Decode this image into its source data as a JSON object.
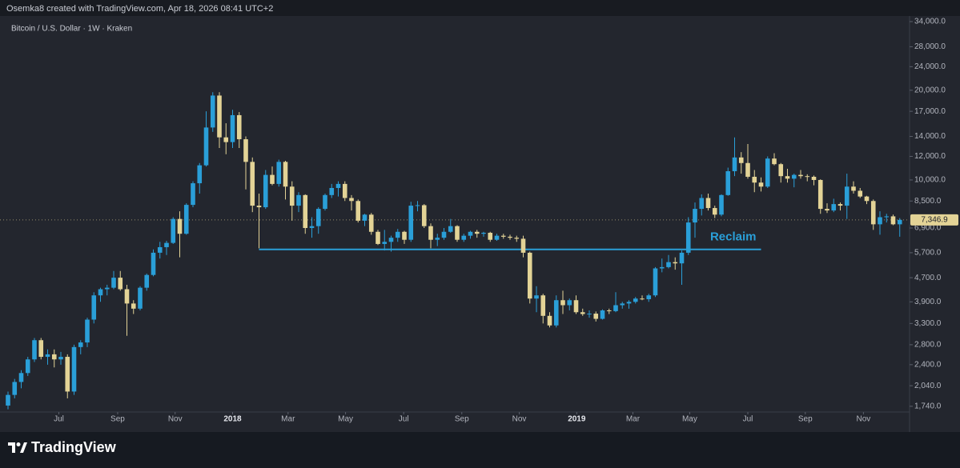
{
  "header": {
    "credit": "Osemka8 created with TradingView.com, Apr 18, 2026 08:41 UTC+2"
  },
  "footer": {
    "brand": "TradingView"
  },
  "chart_data": {
    "type": "candlestick",
    "title": "Bitcoin / U.S. Dollar · 1W · Kraken",
    "log_scale": true,
    "up_color": "#2a9fd8",
    "down_color": "#e3d396",
    "ylim": [
      1665,
      35500
    ],
    "yticks": [
      {
        "value": 1740,
        "label": "1,740.0"
      },
      {
        "value": 2040,
        "label": "2,040.0"
      },
      {
        "value": 2400,
        "label": "2,400.0"
      },
      {
        "value": 2800,
        "label": "2,800.0"
      },
      {
        "value": 3300,
        "label": "3,300.0"
      },
      {
        "value": 3900,
        "label": "3,900.0"
      },
      {
        "value": 4700,
        "label": "4,700.0"
      },
      {
        "value": 5700,
        "label": "5,700.0"
      },
      {
        "value": 6900,
        "label": "6,900.0"
      },
      {
        "value": 8500,
        "label": "8,500.0"
      },
      {
        "value": 10000,
        "label": "10,000.0"
      },
      {
        "value": 12000,
        "label": "12,000.0"
      },
      {
        "value": 14000,
        "label": "14,000.0"
      },
      {
        "value": 17000,
        "label": "17,000.0"
      },
      {
        "value": 20000,
        "label": "20,000.0"
      },
      {
        "value": 24000,
        "label": "24,000.0"
      },
      {
        "value": 28000,
        "label": "28,000.0"
      },
      {
        "value": 34000,
        "label": "34,000.0"
      }
    ],
    "xticks": [
      {
        "value": 7.7,
        "label": "Jul"
      },
      {
        "value": 16.6,
        "label": "Sep"
      },
      {
        "value": 25.3,
        "label": "Nov"
      },
      {
        "value": 34,
        "label": "2018"
      },
      {
        "value": 42.4,
        "label": "Mar"
      },
      {
        "value": 51.1,
        "label": "May"
      },
      {
        "value": 59.9,
        "label": "Jul"
      },
      {
        "value": 68.7,
        "label": "Sep"
      },
      {
        "value": 77.4,
        "label": "Nov"
      },
      {
        "value": 86.1,
        "label": "2019"
      },
      {
        "value": 94.6,
        "label": "Mar"
      },
      {
        "value": 103.2,
        "label": "May"
      },
      {
        "value": 112,
        "label": "Jul"
      },
      {
        "value": 120.7,
        "label": "Sep"
      },
      {
        "value": 129.5,
        "label": "Nov"
      }
    ],
    "last_price": {
      "value": 7346.9,
      "label": "7,346.9"
    },
    "annotations": [
      {
        "label": "Reclaim",
        "value": 5850,
        "x": [
          38,
          114
        ],
        "color": "#2a9fd8"
      }
    ],
    "values": [
      [
        1750,
        1950,
        1700,
        1900
      ],
      [
        1900,
        2150,
        1850,
        2100
      ],
      [
        2100,
        2300,
        2000,
        2250
      ],
      [
        2250,
        2550,
        2200,
        2500
      ],
      [
        2500,
        2950,
        2450,
        2900
      ],
      [
        2900,
        2950,
        2500,
        2550
      ],
      [
        2550,
        2700,
        2400,
        2600
      ],
      [
        2600,
        2700,
        2350,
        2500
      ],
      [
        2500,
        2650,
        2400,
        2550
      ],
      [
        2550,
        2600,
        1850,
        1950
      ],
      [
        1950,
        2800,
        1900,
        2750
      ],
      [
        2750,
        2900,
        2600,
        2850
      ],
      [
        2850,
        3450,
        2750,
        3400
      ],
      [
        3400,
        4200,
        3300,
        4100
      ],
      [
        4100,
        4350,
        3900,
        4300
      ],
      [
        4300,
        4450,
        4100,
        4350
      ],
      [
        4350,
        4950,
        4300,
        4700
      ],
      [
        4700,
        4950,
        4250,
        4300
      ],
      [
        4300,
        4450,
        3000,
        3850
      ],
      [
        3850,
        3950,
        3550,
        3700
      ],
      [
        3700,
        4400,
        3650,
        4350
      ],
      [
        4350,
        4850,
        4250,
        4800
      ],
      [
        4800,
        5850,
        4750,
        5700
      ],
      [
        5700,
        6200,
        5450,
        5950
      ],
      [
        5950,
        6250,
        5600,
        6150
      ],
      [
        6150,
        7500,
        6100,
        7400
      ],
      [
        7400,
        7850,
        5500,
        6600
      ],
      [
        6600,
        8350,
        6550,
        8250
      ],
      [
        8250,
        9900,
        8100,
        9750
      ],
      [
        9750,
        11400,
        9000,
        11200
      ],
      [
        11200,
        17000,
        11100,
        15000
      ],
      [
        15000,
        19700,
        14500,
        19200
      ],
      [
        19200,
        19700,
        12800,
        13900
      ],
      [
        13900,
        15500,
        12200,
        13400
      ],
      [
        13400,
        17200,
        12800,
        16500
      ],
      [
        16500,
        16900,
        12800,
        13700
      ],
      [
        13700,
        14000,
        9300,
        11500
      ],
      [
        11500,
        11900,
        7800,
        8200
      ],
      [
        8200,
        9000,
        5900,
        8100
      ],
      [
        8100,
        10800,
        8000,
        10400
      ],
      [
        10400,
        11100,
        9600,
        9700
      ],
      [
        9700,
        11700,
        9500,
        11500
      ],
      [
        11500,
        11600,
        8600,
        9500
      ],
      [
        9500,
        9900,
        7300,
        8200
      ],
      [
        8200,
        9100,
        7800,
        8900
      ],
      [
        8900,
        8950,
        6600,
        6900
      ],
      [
        6900,
        7500,
        6400,
        7000
      ],
      [
        7000,
        8100,
        6600,
        8000
      ],
      [
        8000,
        9000,
        7900,
        8900
      ],
      [
        8900,
        9700,
        8700,
        9400
      ],
      [
        9400,
        9900,
        8800,
        9700
      ],
      [
        9700,
        9900,
        8500,
        8700
      ],
      [
        8700,
        8900,
        7900,
        8500
      ],
      [
        8500,
        8600,
        7200,
        7300
      ],
      [
        7300,
        7700,
        7000,
        7650
      ],
      [
        7650,
        7750,
        6550,
        6700
      ],
      [
        6700,
        6800,
        6050,
        6100
      ],
      [
        6100,
        6800,
        5800,
        6200
      ],
      [
        6200,
        6500,
        5750,
        6400
      ],
      [
        6400,
        6850,
        6200,
        6700
      ],
      [
        6700,
        6750,
        6100,
        6300
      ],
      [
        6300,
        8450,
        6200,
        8200
      ],
      [
        8200,
        8500,
        7850,
        8230
      ],
      [
        8230,
        8300,
        6900,
        7000
      ],
      [
        7000,
        7150,
        5900,
        6300
      ],
      [
        6300,
        6600,
        6000,
        6400
      ],
      [
        6400,
        6900,
        6300,
        6700
      ],
      [
        6700,
        7400,
        6650,
        7000
      ],
      [
        7000,
        7050,
        6200,
        6300
      ],
      [
        6300,
        6600,
        6200,
        6500
      ],
      [
        6500,
        6750,
        6350,
        6700
      ],
      [
        6700,
        6800,
        6400,
        6600
      ],
      [
        6600,
        6700,
        6450,
        6650
      ],
      [
        6650,
        6700,
        6200,
        6300
      ],
      [
        6300,
        6600,
        6250,
        6500
      ],
      [
        6500,
        6600,
        6350,
        6450
      ],
      [
        6450,
        6550,
        6300,
        6400
      ],
      [
        6400,
        6500,
        6200,
        6350
      ],
      [
        6350,
        6500,
        5500,
        5700
      ],
      [
        5700,
        5750,
        3850,
        4000
      ],
      [
        4000,
        4400,
        3600,
        4100
      ],
      [
        4100,
        4150,
        3300,
        3500
      ],
      [
        3500,
        3600,
        3200,
        3250
      ],
      [
        3250,
        4100,
        3200,
        3950
      ],
      [
        3950,
        4250,
        3550,
        3800
      ],
      [
        3800,
        4000,
        3650,
        3950
      ],
      [
        3950,
        4100,
        3550,
        3600
      ],
      [
        3600,
        3700,
        3500,
        3550
      ],
      [
        3550,
        3650,
        3450,
        3560
      ],
      [
        3560,
        3620,
        3350,
        3420
      ],
      [
        3420,
        3680,
        3400,
        3650
      ],
      [
        3650,
        3700,
        3550,
        3630
      ],
      [
        3630,
        4200,
        3600,
        3800
      ],
      [
        3800,
        3900,
        3700,
        3850
      ],
      [
        3850,
        3950,
        3700,
        3900
      ],
      [
        3900,
        4050,
        3850,
        4000
      ],
      [
        4000,
        4100,
        3950,
        3980
      ],
      [
        3980,
        4150,
        3900,
        4100
      ],
      [
        4100,
        5100,
        4050,
        5050
      ],
      [
        5050,
        5450,
        4900,
        5100
      ],
      [
        5100,
        5600,
        5050,
        5300
      ],
      [
        5300,
        5500,
        5000,
        5250
      ],
      [
        5250,
        5800,
        4450,
        5700
      ],
      [
        5700,
        7500,
        5600,
        7200
      ],
      [
        7200,
        8400,
        6400,
        8000
      ],
      [
        8000,
        8950,
        7600,
        8700
      ],
      [
        8700,
        9000,
        7900,
        8050
      ],
      [
        8050,
        8200,
        7450,
        7650
      ],
      [
        7650,
        8950,
        7550,
        8900
      ],
      [
        8900,
        11000,
        8850,
        10700
      ],
      [
        10700,
        13900,
        10300,
        11900
      ],
      [
        11900,
        12400,
        10500,
        11400
      ],
      [
        11400,
        13200,
        10100,
        10250
      ],
      [
        10250,
        10800,
        9100,
        9800
      ],
      [
        9800,
        10200,
        9150,
        9500
      ],
      [
        9500,
        12000,
        9400,
        11800
      ],
      [
        11800,
        12300,
        11200,
        11300
      ],
      [
        11300,
        11400,
        9800,
        10300
      ],
      [
        10300,
        10900,
        9800,
        10100
      ],
      [
        10100,
        10500,
        9450,
        10400
      ],
      [
        10400,
        10800,
        10100,
        10300
      ],
      [
        10300,
        10450,
        9900,
        10250
      ],
      [
        10250,
        10350,
        9600,
        10000
      ],
      [
        10000,
        10050,
        7700,
        8000
      ],
      [
        8000,
        8350,
        7750,
        7900
      ],
      [
        7900,
        8650,
        7800,
        8300
      ],
      [
        8300,
        8400,
        7900,
        8200
      ],
      [
        8200,
        10500,
        7400,
        9500
      ],
      [
        9500,
        9900,
        9000,
        9200
      ],
      [
        9200,
        9400,
        8700,
        8800
      ],
      [
        8800,
        8850,
        8300,
        8500
      ],
      [
        8500,
        8600,
        6800,
        7100
      ],
      [
        7100,
        7850,
        6550,
        7500
      ],
      [
        7500,
        7700,
        7200,
        7550
      ],
      [
        7550,
        7650,
        7050,
        7100
      ],
      [
        7100,
        7450,
        6450,
        7346.9
      ]
    ]
  }
}
